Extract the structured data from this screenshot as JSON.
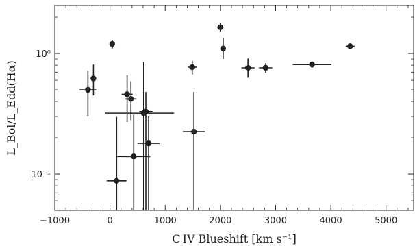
{
  "chart_data": {
    "type": "scatter",
    "title": "",
    "xlabel": "C IV Blueshift [km s⁻¹]",
    "ylabel": "L_Bol/L_Edd(Hα)",
    "xlim": [
      -1000,
      5500
    ],
    "ylim": [
      0.05,
      2.5
    ],
    "yscale": "log",
    "grid": false,
    "legend": "none",
    "x_ticks": [
      -1000,
      0,
      1000,
      2000,
      3000,
      4000,
      5000
    ],
    "x_tick_labels": [
      "−1000",
      "0",
      "1000",
      "2000",
      "3000",
      "4000",
      "5000"
    ],
    "y_ticks": [
      0.1,
      1.0
    ],
    "y_tick_labels": [
      "10⁻¹",
      "10⁰"
    ],
    "marker_color": "#222222",
    "points": [
      {
        "x": -400,
        "y": 0.5,
        "xerr": [
          150,
          150
        ],
        "yerr": [
          0.2,
          0.22
        ]
      },
      {
        "x": -300,
        "y": 0.62,
        "xerr": [
          0,
          0
        ],
        "yerr": [
          0.17,
          0.19
        ]
      },
      {
        "x": 40,
        "y": 1.2,
        "xerr": [
          0,
          0
        ],
        "yerr": [
          0.1,
          0.1
        ]
      },
      {
        "x": 120,
        "y": 0.088,
        "xerr": [
          180,
          180
        ],
        "yerr": [
          0.038,
          0.21
        ]
      },
      {
        "x": 310,
        "y": 0.46,
        "xerr": [
          100,
          100
        ],
        "yerr": [
          0.19,
          0.2
        ]
      },
      {
        "x": 380,
        "y": 0.42,
        "xerr": [
          100,
          100
        ],
        "yerr": [
          0.14,
          0.17
        ]
      },
      {
        "x": 430,
        "y": 0.14,
        "xerr": [
          300,
          300
        ],
        "yerr": [
          0.09,
          0.17
        ]
      },
      {
        "x": 610,
        "y": 0.32,
        "xerr": [
          700,
          550
        ],
        "yerr": [
          0.27,
          0.53
        ]
      },
      {
        "x": 650,
        "y": 0.33,
        "xerr": [
          120,
          120
        ],
        "yerr": [
          0.28,
          0.15
        ]
      },
      {
        "x": 700,
        "y": 0.18,
        "xerr": [
          200,
          200
        ],
        "yerr": [
          0.13,
          0.12
        ]
      },
      {
        "x": 1490,
        "y": 0.77,
        "xerr": [
          80,
          80
        ],
        "yerr": [
          0.1,
          0.1
        ]
      },
      {
        "x": 1520,
        "y": 0.225,
        "xerr": [
          200,
          200
        ],
        "yerr": [
          0.175,
          0.255
        ]
      },
      {
        "x": 2000,
        "y": 1.65,
        "xerr": [
          60,
          60
        ],
        "yerr": [
          0.13,
          0.13
        ]
      },
      {
        "x": 2050,
        "y": 1.1,
        "xerr": [
          0,
          0
        ],
        "yerr": [
          0.2,
          0.25
        ]
      },
      {
        "x": 2500,
        "y": 0.76,
        "xerr": [
          120,
          120
        ],
        "yerr": [
          0.13,
          0.15
        ]
      },
      {
        "x": 2820,
        "y": 0.76,
        "xerr": [
          120,
          120
        ],
        "yerr": [
          0.07,
          0.07
        ]
      },
      {
        "x": 3660,
        "y": 0.81,
        "xerr": [
          350,
          350
        ],
        "yerr": [
          0.05,
          0.05
        ]
      },
      {
        "x": 4350,
        "y": 1.15,
        "xerr": [
          80,
          80
        ],
        "yerr": [
          0.05,
          0.05
        ]
      }
    ]
  }
}
